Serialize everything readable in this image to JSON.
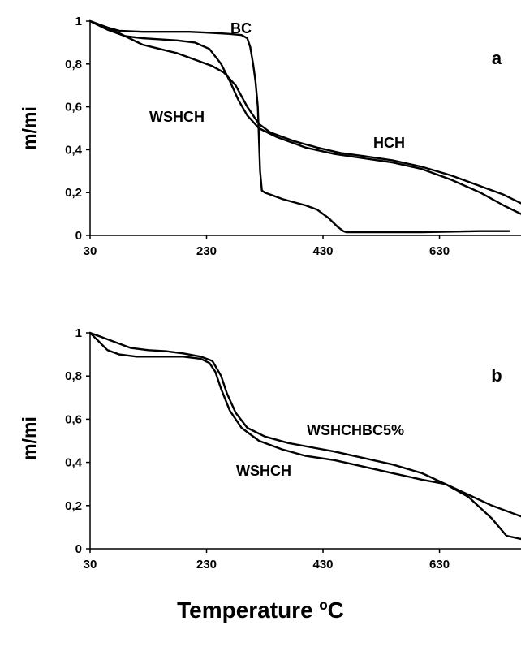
{
  "x_axis_title": "Temperature ºC",
  "chart_data": [
    {
      "type": "line",
      "panel_label": "a",
      "ylabel": "m/mi",
      "xlim": [
        30,
        770
      ],
      "ylim": [
        0,
        1
      ],
      "x_ticks": [
        30,
        230,
        430,
        630
      ],
      "x_tick_labels": [
        "30",
        "230",
        "430",
        "630"
      ],
      "y_ticks": [
        0,
        0.2,
        0.4,
        0.6,
        0.8,
        1
      ],
      "y_tick_labels": [
        "0",
        "0,2",
        "0,4",
        "0,6",
        "0,8",
        "1"
      ],
      "grid": false,
      "series": [
        {
          "name": "BC",
          "x": [
            30,
            60,
            80,
            120,
            160,
            200,
            240,
            270,
            290,
            300,
            305,
            310,
            314,
            318,
            320,
            322,
            325,
            330,
            340,
            360,
            380,
            400,
            420,
            440,
            455,
            465,
            470,
            500,
            600,
            700,
            750
          ],
          "y": [
            1.0,
            0.97,
            0.955,
            0.95,
            0.95,
            0.95,
            0.945,
            0.94,
            0.935,
            0.92,
            0.88,
            0.8,
            0.72,
            0.6,
            0.45,
            0.3,
            0.21,
            0.2,
            0.19,
            0.17,
            0.155,
            0.14,
            0.12,
            0.08,
            0.04,
            0.02,
            0.015,
            0.015,
            0.015,
            0.02,
            0.02
          ]
        },
        {
          "name": "WSHCH",
          "x": [
            30,
            60,
            90,
            120,
            150,
            180,
            210,
            235,
            255,
            270,
            285,
            300,
            320,
            350,
            400,
            450,
            500,
            550,
            600,
            650,
            700,
            740,
            770
          ],
          "y": [
            1.0,
            0.96,
            0.93,
            0.92,
            0.915,
            0.91,
            0.9,
            0.87,
            0.8,
            0.72,
            0.63,
            0.56,
            0.5,
            0.46,
            0.41,
            0.38,
            0.36,
            0.34,
            0.31,
            0.26,
            0.2,
            0.14,
            0.1
          ]
        },
        {
          "name": "HCH",
          "x": [
            30,
            60,
            90,
            120,
            150,
            180,
            210,
            240,
            260,
            280,
            300,
            320,
            340,
            380,
            420,
            460,
            500,
            550,
            600,
            650,
            700,
            740,
            770
          ],
          "y": [
            1.0,
            0.97,
            0.93,
            0.89,
            0.87,
            0.85,
            0.82,
            0.79,
            0.76,
            0.7,
            0.6,
            0.52,
            0.48,
            0.44,
            0.41,
            0.385,
            0.37,
            0.35,
            0.32,
            0.28,
            0.23,
            0.19,
            0.15
          ]
        }
      ]
    },
    {
      "type": "line",
      "panel_label": "b",
      "ylabel": "m/mi",
      "xlim": [
        30,
        770
      ],
      "ylim": [
        0,
        1
      ],
      "x_ticks": [
        30,
        230,
        430,
        630
      ],
      "x_tick_labels": [
        "30",
        "230",
        "430",
        "630"
      ],
      "y_ticks": [
        0,
        0.2,
        0.4,
        0.6,
        0.8,
        1
      ],
      "y_tick_labels": [
        "0",
        "0,2",
        "0,4",
        "0,6",
        "0,8",
        "1"
      ],
      "grid": false,
      "series": [
        {
          "name": "WSHCHBC5%",
          "x": [
            30,
            50,
            70,
            100,
            130,
            160,
            190,
            220,
            240,
            255,
            265,
            280,
            300,
            330,
            370,
            410,
            450,
            500,
            550,
            600,
            640,
            680,
            720,
            770
          ],
          "y": [
            1.0,
            0.98,
            0.96,
            0.93,
            0.92,
            0.915,
            0.905,
            0.89,
            0.87,
            0.8,
            0.72,
            0.63,
            0.56,
            0.52,
            0.49,
            0.47,
            0.45,
            0.42,
            0.39,
            0.35,
            0.3,
            0.25,
            0.2,
            0.15
          ]
        },
        {
          "name": "WSHCH",
          "x": [
            30,
            45,
            60,
            80,
            110,
            150,
            190,
            220,
            235,
            245,
            255,
            270,
            290,
            320,
            360,
            400,
            450,
            500,
            550,
            600,
            640,
            680,
            720,
            745,
            770
          ],
          "y": [
            1.0,
            0.96,
            0.92,
            0.9,
            0.89,
            0.89,
            0.89,
            0.88,
            0.86,
            0.82,
            0.74,
            0.64,
            0.56,
            0.5,
            0.46,
            0.43,
            0.41,
            0.38,
            0.35,
            0.32,
            0.3,
            0.24,
            0.14,
            0.06,
            0.045
          ]
        }
      ]
    }
  ]
}
